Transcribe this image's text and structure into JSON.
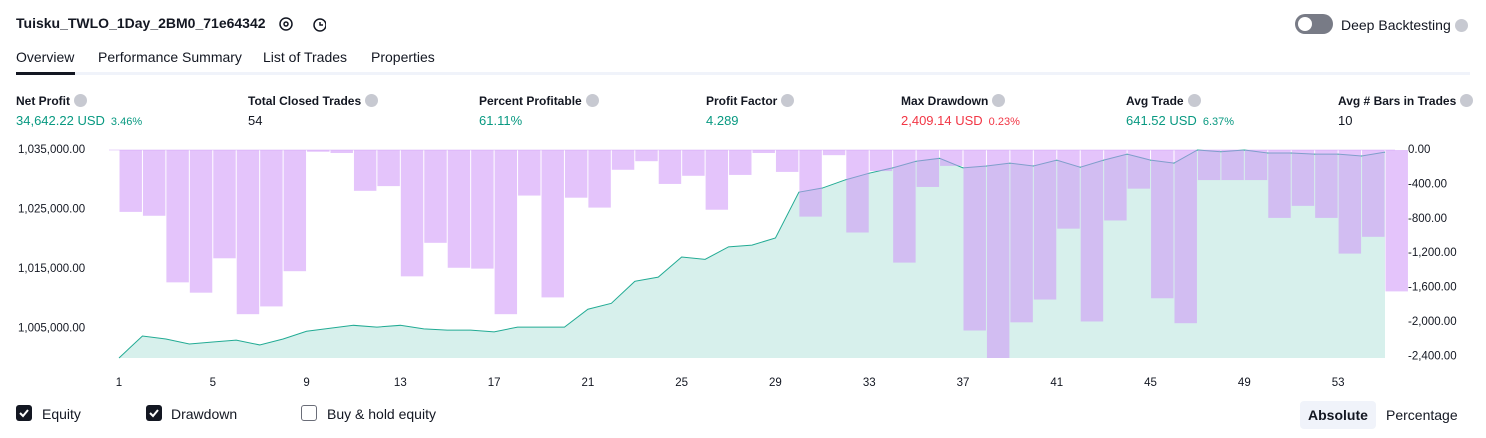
{
  "header": {
    "title": "Tuisku_TWLO_1Day_2BM0_71e64342",
    "toggle": "Deep Backtesting"
  },
  "tabs": [
    "Overview",
    "Performance Summary",
    "List of Trades",
    "Properties"
  ],
  "metrics": [
    {
      "label": "Net Profit",
      "value": "34,642.22 USD",
      "pct": "3.46%",
      "tone": "up"
    },
    {
      "label": "Total Closed Trades",
      "value": "54",
      "tone": "plain"
    },
    {
      "label": "Percent Profitable",
      "value": "61.11%",
      "tone": "up"
    },
    {
      "label": "Profit Factor",
      "value": "4.289",
      "tone": "up"
    },
    {
      "label": "Max Drawdown",
      "value": "2,409.14 USD",
      "pct": "0.23%",
      "tone": "down"
    },
    {
      "label": "Avg Trade",
      "value": "641.52 USD",
      "pct": "6.37%",
      "tone": "up"
    },
    {
      "label": "Avg # Bars in Trades",
      "value": "10",
      "tone": "plain"
    }
  ],
  "chart_data": {
    "type": "equity-drawdown",
    "x": [
      1,
      2,
      3,
      4,
      5,
      6,
      7,
      8,
      9,
      10,
      11,
      12,
      13,
      14,
      15,
      16,
      17,
      18,
      19,
      20,
      21,
      22,
      23,
      24,
      25,
      26,
      27,
      28,
      29,
      30,
      31,
      32,
      33,
      34,
      35,
      36,
      37,
      38,
      39,
      40,
      41,
      42,
      43,
      44,
      45,
      46,
      47,
      48,
      49,
      50,
      51,
      52,
      53,
      54,
      55
    ],
    "series": [
      {
        "name": "Equity",
        "color": "#22ab94",
        "values": [
          1000000,
          1003700,
          1003200,
          1002350,
          1002700,
          1003000,
          1002200,
          1003200,
          1004500,
          1005000,
          1005500,
          1005200,
          1005500,
          1004900,
          1004700,
          1004700,
          1004400,
          1005200,
          1005200,
          1005200,
          1008200,
          1009200,
          1012900,
          1013600,
          1017000,
          1016600,
          1018700,
          1019000,
          1020200,
          1027900,
          1028600,
          1030000,
          1031100,
          1032000,
          1033100,
          1033600,
          1032000,
          1032300,
          1032800,
          1032300,
          1033300,
          1032100,
          1033300,
          1034300,
          1033300,
          1032800,
          1035000,
          1034700,
          1035000,
          1034500,
          1034500,
          1034300,
          1034300,
          1034000,
          1034642
        ]
      },
      {
        "name": "Drawdown",
        "color": "#ce93f7",
        "axis": "y2",
        "values": [
          -720,
          -765,
          -1540,
          -1660,
          -1260,
          -1910,
          -1820,
          -1410,
          -20,
          -35,
          -475,
          -420,
          -1470,
          -1080,
          -1370,
          -1380,
          -1910,
          -530,
          -1715,
          -555,
          -670,
          -230,
          -130,
          -395,
          -300,
          -695,
          -290,
          -35,
          -255,
          -775,
          -60,
          -960,
          -245,
          -1310,
          -430,
          -185,
          -2100,
          -2420,
          -2005,
          -1740,
          -915,
          -1995,
          -820,
          -450,
          -1725,
          -2015,
          -350,
          -350,
          -350,
          -790,
          -650,
          -790,
          -1205,
          -1010,
          -1645
        ]
      }
    ],
    "legend_extra": "Buy & hold equity",
    "modes": [
      "Absolute",
      "Percentage"
    ],
    "xlim": [
      1,
      55
    ],
    "xticks": [
      1,
      5,
      9,
      13,
      17,
      21,
      25,
      29,
      33,
      37,
      41,
      45,
      49,
      53
    ],
    "ylim": [
      1000000,
      1035000
    ],
    "yticks": [
      {
        "value": 1005000,
        "label": "1,005,000.00"
      },
      {
        "value": 1015000,
        "label": "1,015,000.00"
      },
      {
        "value": 1025000,
        "label": "1,025,000.00"
      },
      {
        "value": 1035000,
        "label": "1,035,000.00"
      }
    ],
    "y2lim": [
      -2420,
      0
    ],
    "y2ticks": [
      {
        "value": 0,
        "label": "0.00"
      },
      {
        "value": -400,
        "label": "-400.00"
      },
      {
        "value": -800,
        "label": "-800.00"
      },
      {
        "value": -1200,
        "label": "-1,200.00"
      },
      {
        "value": -1600,
        "label": "-1,600.00"
      },
      {
        "value": -2000,
        "label": "-2,000.00"
      },
      {
        "value": -2400,
        "label": "-2,400.00"
      }
    ]
  }
}
